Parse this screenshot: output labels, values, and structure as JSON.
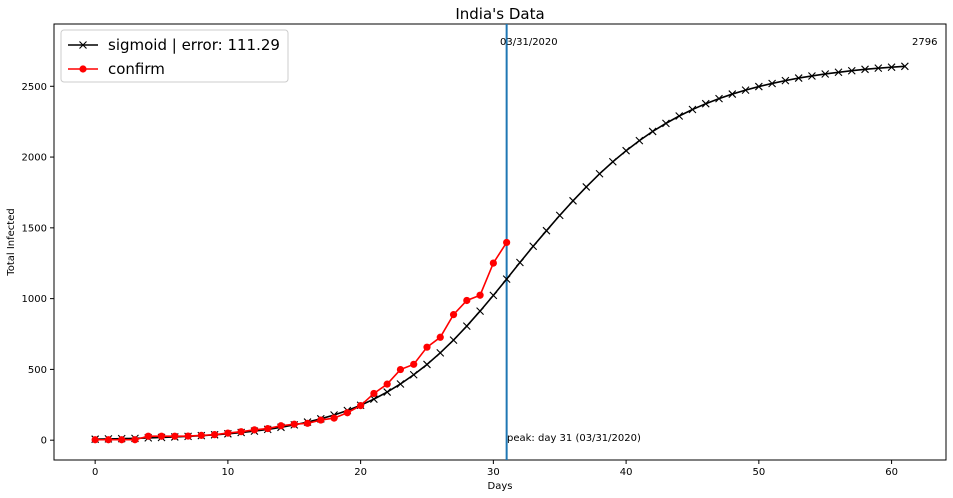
{
  "chart_data": {
    "type": "line",
    "title": "India's Data",
    "xlabel": "Days",
    "ylabel": "Total Infected",
    "xlim": [
      -3.1,
      64.1
    ],
    "ylim": [
      -140,
      2940
    ],
    "xticks": [
      0,
      10,
      20,
      30,
      40,
      50,
      60
    ],
    "yticks": [
      0,
      500,
      1000,
      1500,
      2000,
      2500
    ],
    "grid": false,
    "legend_position": "top-left",
    "series": [
      {
        "name": "sigmoid | error: 111.29",
        "color": "#000000",
        "marker": "x",
        "x": [
          0,
          1,
          2,
          3,
          4,
          5,
          6,
          7,
          8,
          9,
          10,
          11,
          12,
          13,
          14,
          15,
          16,
          17,
          18,
          19,
          20,
          21,
          22,
          23,
          24,
          25,
          26,
          27,
          28,
          29,
          30,
          31,
          32,
          33,
          34,
          35,
          36,
          37,
          38,
          39,
          40,
          41,
          42,
          43,
          44,
          45,
          46,
          47,
          48,
          49,
          50,
          51,
          52,
          53,
          54,
          55,
          56,
          57,
          58,
          59,
          60,
          61
        ],
        "values": [
          7,
          9,
          11,
          13,
          16,
          19,
          23,
          27,
          32,
          38,
          45,
          54,
          64,
          76,
          91,
          108,
          128,
          151,
          178,
          210,
          247,
          290,
          340,
          397,
          462,
          535,
          617,
          707,
          806,
          912,
          1023,
          1138,
          1255,
          1370,
          1480,
          1588,
          1691,
          1789,
          1882,
          1967,
          2045,
          2116,
          2181,
          2238,
          2290,
          2336,
          2377,
          2413,
          2445,
          2473,
          2498,
          2520,
          2540,
          2558,
          2573,
          2587,
          2599,
          2610,
          2620,
          2628,
          2635,
          2641
        ]
      },
      {
        "name": "confirm",
        "color": "#ff0000",
        "marker": "o",
        "x": [
          0,
          1,
          2,
          3,
          4,
          5,
          6,
          7,
          8,
          9,
          10,
          11,
          12,
          13,
          14,
          15,
          16,
          17,
          18,
          19,
          20,
          21,
          22,
          23,
          24,
          25,
          26,
          27,
          28,
          29,
          30,
          31
        ],
        "values": [
          3,
          3,
          3,
          3,
          28,
          28,
          28,
          29,
          34,
          39,
          50,
          60,
          73,
          82,
          102,
          113,
          119,
          142,
          156,
          194,
          244,
          330,
          396,
          499,
          536,
          657,
          727,
          887,
          987,
          1024,
          1251,
          1397
        ]
      }
    ],
    "vline": {
      "x": 31,
      "color": "#1f77b4",
      "label": "03/31/2020"
    },
    "annotations": {
      "end_value": "2796",
      "peak": "peak: day 31 (03/31/2020)"
    }
  }
}
